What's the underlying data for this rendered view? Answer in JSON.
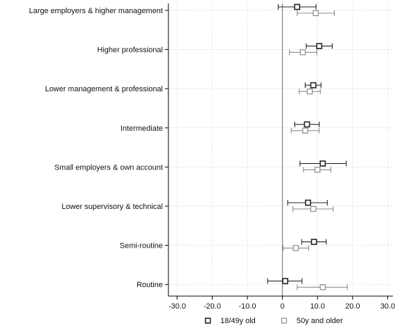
{
  "chart_data": {
    "type": "scatter",
    "subtype": "coefficient-plot-with-confidence-intervals",
    "orientation": "horizontal",
    "categories": [
      "Large employers & higher management",
      "Higher professional",
      "Lower management & professional",
      "Intermediate",
      "Small employers & own account",
      "Lower supervisory & technical",
      "Semi-routine",
      "Routine"
    ],
    "series": [
      {
        "name": "18/49y old",
        "color": "#222222",
        "marker": "hollow-square",
        "estimates": [
          4.2,
          10.5,
          8.8,
          7.0,
          11.5,
          7.3,
          9.0,
          0.8
        ],
        "ci_low": [
          -1.2,
          6.8,
          6.5,
          3.5,
          5.0,
          1.5,
          5.5,
          -4.2
        ],
        "ci_high": [
          9.6,
          14.2,
          11.0,
          10.5,
          18.2,
          12.8,
          12.5,
          5.6
        ]
      },
      {
        "name": "50y and older",
        "color": "#8a8a8a",
        "marker": "hollow-square",
        "estimates": [
          9.5,
          5.8,
          7.8,
          6.5,
          10.0,
          8.8,
          3.8,
          11.5
        ],
        "ci_low": [
          4.2,
          2.0,
          4.8,
          2.5,
          6.0,
          3.0,
          0.2,
          4.2
        ],
        "ci_high": [
          14.8,
          9.8,
          10.8,
          10.5,
          13.8,
          14.5,
          7.5,
          18.5
        ]
      }
    ],
    "x_ticks": [
      "-30.0",
      "-20.0",
      "-10.0",
      "0",
      "10.0",
      "20.0",
      "30.0"
    ],
    "x_tick_values": [
      -30,
      -20,
      -10,
      0,
      10,
      20,
      30
    ],
    "xlim": [
      -32.5,
      31.5
    ],
    "reference_line": 0,
    "grid": true,
    "legend_position": "bottom-center",
    "title": "",
    "xlabel": "",
    "ylabel": ""
  }
}
